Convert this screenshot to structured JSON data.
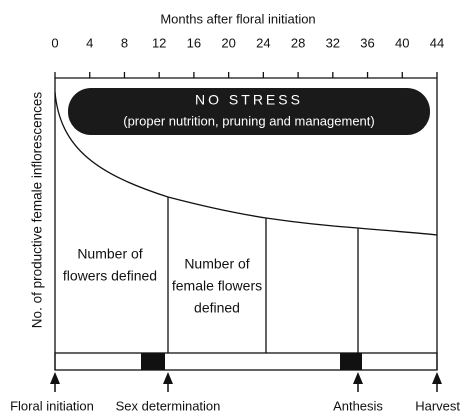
{
  "axis": {
    "title": "Months after floral initiation",
    "ticks": [
      0,
      4,
      8,
      12,
      16,
      20,
      24,
      28,
      32,
      36,
      40,
      44
    ]
  },
  "y_label": "No. of productive female inflorescences",
  "banner": {
    "title": "NO STRESS",
    "subtitle": "(proper nutrition, pruning and management)"
  },
  "regions": [
    {
      "lines": [
        "Number of",
        "flowers defined"
      ]
    },
    {
      "lines": [
        "Number of",
        "female flowers",
        "defined"
      ]
    }
  ],
  "events": [
    "Floral initiation",
    "Sex determination",
    "Anthesis",
    "Harvest"
  ]
}
